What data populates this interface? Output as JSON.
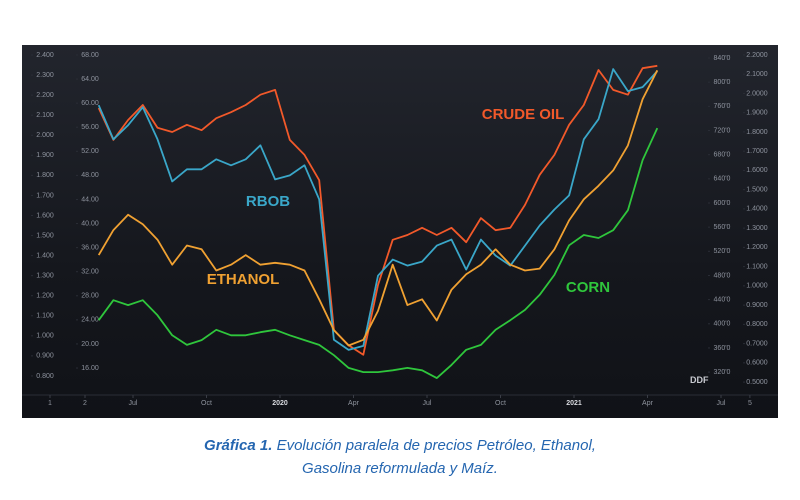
{
  "chart_data": {
    "type": "line",
    "x": [
      4.6,
      5.2,
      5.8,
      6.4,
      7.0,
      7.6,
      8.2,
      8.8,
      9.4,
      10.0,
      10.6,
      11.2,
      11.8,
      12.4,
      13.0,
      13.6,
      14.2,
      14.8,
      15.4,
      16.0,
      16.6,
      17.2,
      17.8,
      18.4,
      19.0,
      19.6,
      20.2,
      20.8,
      21.4,
      22.0,
      22.6,
      23.2,
      23.8,
      24.4,
      25.0,
      25.6,
      26.2,
      26.8,
      27.4
    ],
    "xlim": [
      1.469,
      32.327
    ],
    "xticks": [
      {
        "value": 2.612,
        "label": "1"
      },
      {
        "value": 4.041,
        "label": "2"
      },
      {
        "value": 6,
        "label": "Jul"
      },
      {
        "value": 9,
        "label": "Oct"
      },
      {
        "value": 12,
        "label": "2020"
      },
      {
        "value": 15,
        "label": "Apr"
      },
      {
        "value": 18,
        "label": "Jul"
      },
      {
        "value": 21,
        "label": "Oct"
      },
      {
        "value": 24,
        "label": "2021"
      },
      {
        "value": 27,
        "label": "Apr"
      },
      {
        "value": 30,
        "label": "Jul"
      },
      {
        "value": 31.18,
        "label": "5"
      }
    ],
    "ylim": [
      0.705,
      2.435
    ],
    "yticks": [
      {
        "value": 2.4,
        "label": "2.400"
      },
      {
        "value": 2.3,
        "label": "2.300"
      },
      {
        "value": 2.2,
        "label": "2.200"
      },
      {
        "value": 2.1,
        "label": "2.100"
      },
      {
        "value": 2.0,
        "label": "2.000"
      },
      {
        "value": 1.9,
        "label": "1.900"
      },
      {
        "value": 1.8,
        "label": "1.800"
      },
      {
        "value": 1.7,
        "label": "1.700"
      },
      {
        "value": 1.6,
        "label": "1.600"
      },
      {
        "value": 1.5,
        "label": "1.500"
      },
      {
        "value": 1.4,
        "label": "1.400"
      },
      {
        "value": 1.3,
        "label": "1.300"
      },
      {
        "value": 1.2,
        "label": "1.200"
      },
      {
        "value": 1.1,
        "label": "1.100"
      },
      {
        "value": 1.0,
        "label": "1.000"
      },
      {
        "value": 0.9,
        "label": "0.900"
      },
      {
        "value": 0.8,
        "label": "0.800"
      }
    ],
    "y2lim": [
      11.52,
      69.16
    ],
    "y2ticks": [
      {
        "value": 68,
        "label": "68.00"
      },
      {
        "value": 64,
        "label": "64.00"
      },
      {
        "value": 60,
        "label": "60.00"
      },
      {
        "value": 56,
        "label": "56.00"
      },
      {
        "value": 52,
        "label": "52.00"
      },
      {
        "value": 48,
        "label": "48.00"
      },
      {
        "value": 44,
        "label": "44.00"
      },
      {
        "value": 40,
        "label": "40.00"
      },
      {
        "value": 36,
        "label": "36.00"
      },
      {
        "value": 32,
        "label": "32.00"
      },
      {
        "value": 28,
        "label": "28.00"
      },
      {
        "value": 24,
        "label": "24.00"
      },
      {
        "value": 20,
        "label": "20.00"
      },
      {
        "value": 16,
        "label": "16.00"
      }
    ],
    "y3lim": [
      282.1,
      856.6
    ],
    "y3ticks": [
      {
        "value": 840,
        "label": "840'0"
      },
      {
        "value": 800,
        "label": "800'0"
      },
      {
        "value": 760,
        "label": "760'0"
      },
      {
        "value": 720,
        "label": "720'0"
      },
      {
        "value": 680,
        "label": "680'0"
      },
      {
        "value": 640,
        "label": "640'0"
      },
      {
        "value": 600,
        "label": "600'0"
      },
      {
        "value": 560,
        "label": "560'0"
      },
      {
        "value": 520,
        "label": "520'0"
      },
      {
        "value": 480,
        "label": "480'0"
      },
      {
        "value": 440,
        "label": "440'0"
      },
      {
        "value": 400,
        "label": "400'0"
      },
      {
        "value": 360,
        "label": "360'0"
      },
      {
        "value": 320,
        "label": "320'0"
      }
    ],
    "y4lim": [
      0.433,
      2.236
    ],
    "y4ticks": [
      {
        "value": 2.2,
        "label": "2.2000"
      },
      {
        "value": 2.1,
        "label": "2.1000"
      },
      {
        "value": 2.0,
        "label": "2.0000"
      },
      {
        "value": 1.9,
        "label": "1.9000"
      },
      {
        "value": 1.8,
        "label": "1.8000"
      },
      {
        "value": 1.7,
        "label": "1.7000"
      },
      {
        "value": 1.6,
        "label": "1.6000"
      },
      {
        "value": 1.5,
        "label": "1.5000"
      },
      {
        "value": 1.4,
        "label": "1.4000"
      },
      {
        "value": 1.3,
        "label": "1.3000"
      },
      {
        "value": 1.2,
        "label": "1.2000"
      },
      {
        "value": 1.1,
        "label": "1.1000"
      },
      {
        "value": 1.0,
        "label": "1.0000"
      },
      {
        "value": 0.9,
        "label": "0.9000"
      },
      {
        "value": 0.8,
        "label": "0.8000"
      },
      {
        "value": 0.7,
        "label": "0.7000"
      },
      {
        "value": 0.6,
        "label": "0.6000"
      },
      {
        "value": 0.5,
        "label": "0.5000"
      }
    ],
    "series": [
      {
        "name": "CRUDE OIL",
        "color": "#f2592a",
        "axis": "y2",
        "values": [
          59.2,
          53.9,
          57.2,
          59.7,
          55.9,
          55.2,
          56.4,
          55.5,
          57.5,
          58.5,
          59.7,
          61.4,
          62.2,
          53.9,
          51.4,
          47.2,
          22.3,
          19.8,
          18.2,
          29.8,
          37.3,
          38.1,
          39.3,
          38.1,
          39.3,
          36.9,
          40.9,
          38.9,
          39.3,
          43.1,
          48.1,
          51.4,
          56.4,
          59.7,
          65.5,
          62.2,
          61.4,
          65.8,
          66.2
        ]
      },
      {
        "name": "RBOB",
        "color": "#3aa7c9",
        "axis": "y",
        "values": [
          2.15,
          1.98,
          2.05,
          2.14,
          1.98,
          1.77,
          1.83,
          1.83,
          1.88,
          1.85,
          1.88,
          1.95,
          1.78,
          1.8,
          1.85,
          1.68,
          0.98,
          0.93,
          0.95,
          1.3,
          1.38,
          1.35,
          1.37,
          1.45,
          1.48,
          1.33,
          1.48,
          1.4,
          1.35,
          1.45,
          1.55,
          1.63,
          1.7,
          1.98,
          2.08,
          2.33,
          2.22,
          2.24,
          2.32
        ]
      },
      {
        "name": "ETHANOL",
        "color": "#f0a132",
        "axis": "y4",
        "values": [
          1.16,
          1.29,
          1.37,
          1.32,
          1.24,
          1.11,
          1.21,
          1.19,
          1.08,
          1.11,
          1.16,
          1.11,
          1.12,
          1.11,
          1.08,
          0.93,
          0.77,
          0.69,
          0.72,
          0.87,
          1.11,
          0.9,
          0.93,
          0.82,
          0.98,
          1.06,
          1.11,
          1.19,
          1.11,
          1.08,
          1.09,
          1.19,
          1.34,
          1.45,
          1.52,
          1.6,
          1.73,
          1.97,
          2.12
        ]
      },
      {
        "name": "CORN",
        "color": "#2fc63c",
        "axis": "y3",
        "values": [
          406,
          439,
          431,
          439,
          414,
          381,
          365,
          373,
          390,
          381,
          381,
          386,
          390,
          381,
          373,
          365,
          348,
          327,
          320,
          320,
          323,
          327,
          323,
          310,
          332,
          357,
          365,
          390,
          406,
          423,
          448,
          481,
          530,
          547,
          542,
          555,
          588,
          671,
          724
        ]
      }
    ],
    "grid": false
  },
  "caption": {
    "label": "Gráfica 1.",
    "lines": [
      " Evolución paralela de precios Petróleo, Ethanol,",
      "Gasolina reformulada y Maíz."
    ]
  }
}
